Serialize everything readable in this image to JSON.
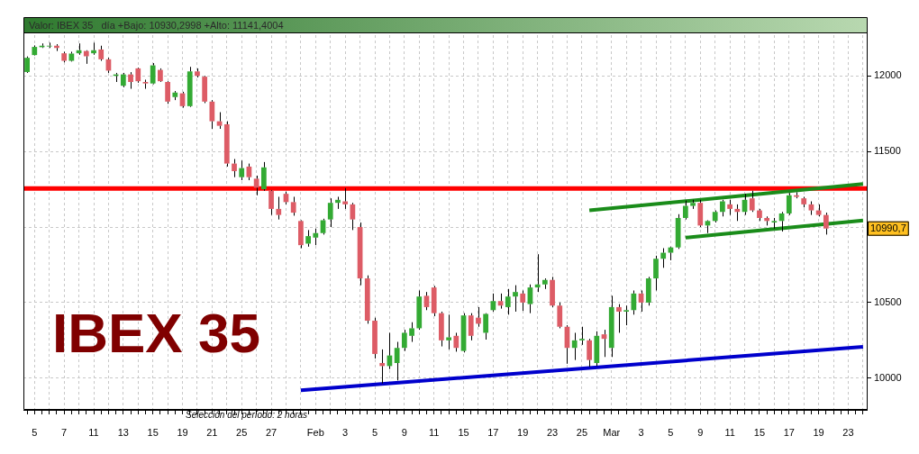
{
  "chart_data": {
    "type": "candlestick",
    "title": "IBEX 35",
    "subtitle": "Valor: IBEX 35   día +Bajo: 10930,2998 +Alto: 11141,4004",
    "annotations": [
      "Selección del período: 2 horas",
      "10990,7"
    ],
    "categories": [
      null,
      "5",
      null,
      null,
      null,
      "7",
      null,
      null,
      null,
      "11",
      null,
      null,
      null,
      "13",
      null,
      null,
      null,
      "15",
      null,
      null,
      null,
      "19",
      null,
      null,
      null,
      "21",
      null,
      null,
      null,
      "25",
      null,
      null,
      null,
      "27",
      null,
      null,
      null,
      null,
      null,
      "Feb",
      null,
      null,
      null,
      "3",
      null,
      null,
      null,
      "5",
      null,
      null,
      null,
      "9",
      null,
      null,
      null,
      "11",
      null,
      null,
      null,
      "15",
      null,
      null,
      null,
      "17",
      null,
      null,
      null,
      "19",
      null,
      null,
      null,
      "23",
      null,
      null,
      null,
      "25",
      null,
      null,
      null,
      "Mar",
      null,
      null,
      null,
      "3",
      null,
      null,
      null,
      "5",
      null,
      null,
      null,
      "9",
      null,
      null,
      null,
      "11",
      null,
      null,
      null,
      "15",
      null,
      null,
      null,
      "17",
      null,
      null,
      null,
      "19",
      null,
      null,
      null,
      "23",
      null,
      null
    ],
    "ylim": [
      9790,
      12270
    ],
    "yticks": [
      10000,
      10500,
      {
        "value": 11000,
        "label": null
      },
      11500,
      12000
    ],
    "grid": true,
    "ref_lines": [
      {
        "axis": "y",
        "value": 11255,
        "color": "#ff0000"
      }
    ],
    "series": [
      {
        "color": "#000000",
        "ohlc": [
          [
            12026,
            12129,
            12020,
            12120
          ],
          [
            12138,
            12202,
            12135,
            12192
          ],
          [
            12190,
            12215,
            12185,
            12200
          ],
          [
            12195,
            12220,
            12185,
            12200
          ],
          [
            12200,
            12210,
            12165,
            12185
          ],
          [
            12150,
            12160,
            12090,
            12100
          ],
          [
            12100,
            12160,
            12095,
            12148
          ],
          [
            12150,
            12215,
            12140,
            12170
          ],
          [
            12165,
            12170,
            12080,
            12130
          ],
          [
            12150,
            12220,
            12140,
            12170
          ],
          [
            12175,
            12200,
            12100,
            12110
          ],
          [
            12110,
            12120,
            12020,
            12035
          ],
          [
            12000,
            12020,
            11960,
            12010
          ],
          [
            11935,
            12020,
            11925,
            12010
          ],
          [
            12010,
            12025,
            11915,
            11960
          ],
          [
            12050,
            12055,
            11955,
            11965
          ],
          [
            11960,
            11975,
            11915,
            11950
          ],
          [
            11950,
            12085,
            11945,
            12070
          ],
          [
            12040,
            12050,
            11960,
            11965
          ],
          [
            11960,
            11965,
            11815,
            11830
          ],
          [
            11860,
            11900,
            11840,
            11890
          ],
          [
            11885,
            11895,
            11790,
            11800
          ],
          [
            11800,
            12060,
            11795,
            12030
          ],
          [
            12030,
            12050,
            11990,
            12000
          ],
          [
            11995,
            12000,
            11820,
            11830
          ],
          [
            11830,
            11840,
            11650,
            11700
          ],
          [
            11700,
            11760,
            11650,
            11670
          ],
          [
            11680,
            11700,
            11400,
            11420
          ],
          [
            11420,
            11450,
            11330,
            11370
          ],
          [
            11330,
            11440,
            11310,
            11390
          ],
          [
            11400,
            11420,
            11310,
            11330
          ],
          [
            11320,
            11340,
            11210,
            11260
          ],
          [
            11250,
            11430,
            11240,
            11395
          ],
          [
            11240,
            11245,
            11080,
            11120
          ],
          [
            11120,
            11200,
            11050,
            11080
          ],
          [
            11220,
            11235,
            11150,
            11165
          ],
          [
            11165,
            11200,
            11075,
            11095
          ],
          [
            11040,
            11045,
            10860,
            10880
          ],
          [
            10890,
            10980,
            10870,
            10940
          ],
          [
            10930,
            10990,
            10880,
            10960
          ],
          [
            10960,
            11055,
            10950,
            11045
          ],
          [
            11050,
            11190,
            11000,
            11160
          ],
          [
            11160,
            11200,
            11120,
            11180
          ],
          [
            11170,
            11258,
            11120,
            11150
          ],
          [
            11150,
            11160,
            10980,
            11050
          ],
          [
            11000,
            11030,
            10615,
            10660
          ],
          [
            10660,
            10680,
            10360,
            10380
          ],
          [
            10380,
            10400,
            10130,
            10160
          ],
          [
            10100,
            10190,
            9965,
            10080
          ],
          [
            10080,
            10300,
            10060,
            10150
          ],
          [
            10100,
            10240,
            9985,
            10200
          ],
          [
            10200,
            10320,
            10180,
            10300
          ],
          [
            10280,
            10370,
            10240,
            10330
          ],
          [
            10330,
            10580,
            10320,
            10540
          ],
          [
            10545,
            10570,
            10450,
            10470
          ],
          [
            10600,
            10610,
            10410,
            10430
          ],
          [
            10430,
            10440,
            10210,
            10250
          ],
          [
            10250,
            10420,
            10190,
            10270
          ],
          [
            10280,
            10300,
            10175,
            10200
          ],
          [
            10180,
            10430,
            10170,
            10415
          ],
          [
            10415,
            10430,
            10250,
            10280
          ],
          [
            10400,
            10470,
            10340,
            10360
          ],
          [
            10300,
            10430,
            10255,
            10425
          ],
          [
            10450,
            10560,
            10440,
            10510
          ],
          [
            10510,
            10560,
            10460,
            10480
          ],
          [
            10470,
            10590,
            10420,
            10540
          ],
          [
            10540,
            10615,
            10440,
            10570
          ],
          [
            10560,
            10580,
            10445,
            10500
          ],
          [
            10490,
            10620,
            10430,
            10600
          ],
          [
            10600,
            10820,
            10570,
            10620
          ],
          [
            10620,
            10660,
            10590,
            10650
          ],
          [
            10650,
            10670,
            10470,
            10480
          ],
          [
            10480,
            10500,
            10330,
            10340
          ],
          [
            10340,
            10350,
            10095,
            10200
          ],
          [
            10200,
            10300,
            10120,
            10250
          ],
          [
            10250,
            10340,
            10220,
            10260
          ],
          [
            10250,
            10260,
            10075,
            10120
          ],
          [
            10100,
            10310,
            10080,
            10280
          ],
          [
            10290,
            10320,
            10140,
            10260
          ],
          [
            10200,
            10545,
            10140,
            10470
          ],
          [
            10470,
            10490,
            10300,
            10440
          ],
          [
            10440,
            10480,
            10350,
            10450
          ],
          [
            10450,
            10580,
            10420,
            10560
          ],
          [
            10560,
            10580,
            10440,
            10500
          ],
          [
            10500,
            10670,
            10480,
            10660
          ],
          [
            10660,
            10810,
            10580,
            10790
          ],
          [
            10790,
            10860,
            10730,
            10830
          ],
          [
            10830,
            10870,
            10780,
            10865
          ],
          [
            10865,
            11085,
            10855,
            11060
          ],
          [
            11060,
            11175,
            11050,
            11140
          ],
          [
            11140,
            11180,
            11120,
            11160
          ],
          [
            11160,
            11180,
            11000,
            11010
          ],
          [
            11010,
            11045,
            10960,
            11040
          ],
          [
            11040,
            11110,
            11030,
            11100
          ],
          [
            11100,
            11180,
            11070,
            11170
          ],
          [
            11150,
            11180,
            11080,
            11120
          ],
          [
            11120,
            11150,
            11040,
            11100
          ],
          [
            11100,
            11220,
            11080,
            11180
          ],
          [
            11190,
            11240,
            11100,
            11110
          ],
          [
            11110,
            11120,
            11040,
            11060
          ],
          [
            11060,
            11070,
            11010,
            11040
          ],
          [
            11030,
            11060,
            10990,
            11040
          ],
          [
            11040,
            11100,
            10970,
            11090
          ],
          [
            11090,
            11225,
            11080,
            11210
          ],
          [
            11210,
            11230,
            11190,
            11200
          ],
          [
            11190,
            11200,
            11130,
            11150
          ],
          [
            11150,
            11170,
            11080,
            11110
          ],
          [
            11110,
            11150,
            11070,
            11080
          ],
          [
            11080,
            11095,
            10950,
            10990
          ],
          null,
          null,
          null,
          null,
          null
        ],
        "colors": [
          "#33aa33",
          "#33aa33",
          "#33aa33",
          "#33aa33",
          "#dd5c66",
          "#dd5c66",
          "#33aa33",
          "#33aa33",
          "#dd5c66",
          "#33aa33",
          "#dd5c66",
          "#dd5c66",
          "#33aa33",
          "#33aa33",
          "#dd5c66",
          "#dd5c66",
          "#dd5c66",
          "#33aa33",
          "#dd5c66",
          "#dd5c66",
          "#33aa33",
          "#dd5c66",
          "#33aa33",
          "#dd5c66",
          "#dd5c66",
          "#dd5c66",
          "#dd5c66",
          "#dd5c66",
          "#dd5c66",
          "#33aa33",
          "#dd5c66",
          "#dd5c66",
          "#33aa33",
          "#dd5c66",
          "#dd5c66",
          "#dd5c66",
          "#dd5c66",
          "#dd5c66",
          "#33aa33",
          "#33aa33",
          "#33aa33",
          "#33aa33",
          "#33aa33",
          "#dd5c66",
          "#dd5c66",
          "#dd5c66",
          "#dd5c66",
          "#dd5c66",
          "#dd5c66",
          "#33aa33",
          "#33aa33",
          "#33aa33",
          "#33aa33",
          "#33aa33",
          "#dd5c66",
          "#dd5c66",
          "#dd5c66",
          "#33aa33",
          "#dd5c66",
          "#33aa33",
          "#dd5c66",
          "#dd5c66",
          "#33aa33",
          "#33aa33",
          "#dd5c66",
          "#33aa33",
          "#33aa33",
          "#dd5c66",
          "#33aa33",
          "#33aa33",
          "#33aa33",
          "#dd5c66",
          "#dd5c66",
          "#dd5c66",
          "#33aa33",
          "#33aa33",
          "#dd5c66",
          "#33aa33",
          "#dd5c66",
          "#33aa33",
          "#dd5c66",
          "#33aa33",
          "#33aa33",
          "#dd5c66",
          "#33aa33",
          "#33aa33",
          "#33aa33",
          "#33aa33",
          "#33aa33",
          "#33aa33",
          "#33aa33",
          "#dd5c66",
          "#33aa33",
          "#33aa33",
          "#33aa33",
          "#dd5c66",
          "#dd5c66",
          "#33aa33",
          "#dd5c66",
          "#dd5c66",
          "#dd5c66",
          "#33aa33",
          "#33aa33",
          "#33aa33",
          "#dd5c66",
          "#dd5c66",
          "#dd5c66",
          "#dd5c66",
          "#dd5c66",
          null,
          null,
          null,
          null,
          null
        ]
      },
      {
        "type": "line",
        "color": "#1a8c1a",
        "values": [
          null,
          null,
          null,
          null,
          null,
          null,
          null,
          null,
          null,
          null,
          null,
          null,
          null,
          null,
          null,
          null,
          null,
          null,
          null,
          null,
          null,
          null,
          null,
          null,
          null,
          null,
          null,
          null,
          null,
          null,
          null,
          null,
          null,
          null,
          null,
          null,
          null,
          null,
          null,
          null,
          null,
          null,
          null,
          null,
          null,
          null,
          null,
          null,
          null,
          null,
          null,
          null,
          null,
          null,
          null,
          null,
          null,
          null,
          null,
          null,
          null,
          null,
          null,
          null,
          null,
          null,
          null,
          null,
          null,
          null,
          null,
          null,
          null,
          null,
          null,
          null,
          11110,
          null,
          null,
          null,
          null,
          null,
          null,
          null,
          null,
          null,
          null,
          null,
          null,
          null,
          null,
          null,
          null,
          null,
          null,
          null,
          null,
          null,
          null,
          null,
          null,
          null,
          null,
          null,
          null,
          null,
          null,
          null,
          null,
          null,
          null,
          null,
          null,
          11285
        ]
      },
      {
        "type": "line",
        "color": "#1a8c1a",
        "values": [
          null,
          null,
          null,
          null,
          null,
          null,
          null,
          null,
          null,
          null,
          null,
          null,
          null,
          null,
          null,
          null,
          null,
          null,
          null,
          null,
          null,
          null,
          null,
          null,
          null,
          null,
          null,
          null,
          null,
          null,
          null,
          null,
          null,
          null,
          null,
          null,
          null,
          null,
          null,
          null,
          null,
          null,
          null,
          null,
          null,
          null,
          null,
          null,
          null,
          null,
          null,
          null,
          null,
          null,
          null,
          null,
          null,
          null,
          null,
          null,
          null,
          null,
          null,
          null,
          null,
          null,
          null,
          null,
          null,
          null,
          null,
          null,
          null,
          null,
          null,
          null,
          null,
          null,
          null,
          null,
          null,
          null,
          null,
          null,
          null,
          null,
          null,
          null,
          null,
          10930,
          null,
          null,
          null,
          null,
          null,
          null,
          null,
          null,
          null,
          null,
          null,
          null,
          null,
          null,
          null,
          null,
          null,
          null,
          null,
          null,
          null,
          null,
          null,
          11044
        ]
      },
      {
        "type": "line",
        "color": "#0000cc",
        "values": [
          null,
          null,
          null,
          null,
          null,
          null,
          null,
          null,
          null,
          null,
          null,
          null,
          null,
          null,
          null,
          null,
          null,
          null,
          null,
          null,
          null,
          null,
          null,
          null,
          null,
          null,
          null,
          null,
          null,
          null,
          null,
          null,
          null,
          null,
          null,
          null,
          null,
          9920,
          null,
          null,
          null,
          null,
          null,
          null,
          null,
          null,
          null,
          null,
          null,
          null,
          null,
          null,
          null,
          null,
          null,
          null,
          null,
          null,
          null,
          null,
          null,
          null,
          null,
          null,
          null,
          null,
          null,
          null,
          null,
          null,
          null,
          null,
          null,
          null,
          null,
          null,
          null,
          null,
          null,
          null,
          null,
          null,
          null,
          null,
          null,
          null,
          null,
          null,
          null,
          null,
          null,
          null,
          null,
          null,
          null,
          null,
          null,
          null,
          null,
          null,
          null,
          null,
          null,
          null,
          null,
          null,
          null,
          null,
          null,
          null,
          null,
          null,
          null,
          10208
        ]
      }
    ]
  }
}
